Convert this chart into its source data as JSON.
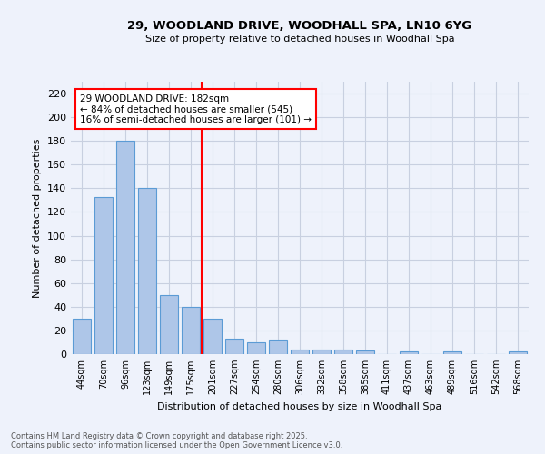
{
  "title_line1": "29, WOODLAND DRIVE, WOODHALL SPA, LN10 6YG",
  "title_line2": "Size of property relative to detached houses in Woodhall Spa",
  "xlabel": "Distribution of detached houses by size in Woodhall Spa",
  "ylabel": "Number of detached properties",
  "categories": [
    "44sqm",
    "70sqm",
    "96sqm",
    "123sqm",
    "149sqm",
    "175sqm",
    "201sqm",
    "227sqm",
    "254sqm",
    "280sqm",
    "306sqm",
    "332sqm",
    "358sqm",
    "385sqm",
    "411sqm",
    "437sqm",
    "463sqm",
    "489sqm",
    "516sqm",
    "542sqm",
    "568sqm"
  ],
  "values": [
    30,
    133,
    180,
    140,
    50,
    40,
    30,
    13,
    10,
    12,
    4,
    4,
    4,
    3,
    0,
    2,
    0,
    2,
    0,
    0,
    2
  ],
  "bar_color": "#aec6e8",
  "bar_edge_color": "#5b9bd5",
  "ylim": [
    0,
    230
  ],
  "yticks": [
    0,
    20,
    40,
    60,
    80,
    100,
    120,
    140,
    160,
    180,
    200,
    220
  ],
  "red_line_x": 5.5,
  "annotation_line1": "29 WOODLAND DRIVE: 182sqm",
  "annotation_line2": "← 84% of detached houses are smaller (545)",
  "annotation_line3": "16% of semi-detached houses are larger (101) →",
  "footer_line1": "Contains HM Land Registry data © Crown copyright and database right 2025.",
  "footer_line2": "Contains public sector information licensed under the Open Government Licence v3.0.",
  "background_color": "#eef2fb",
  "grid_color": "#c8d0e0"
}
